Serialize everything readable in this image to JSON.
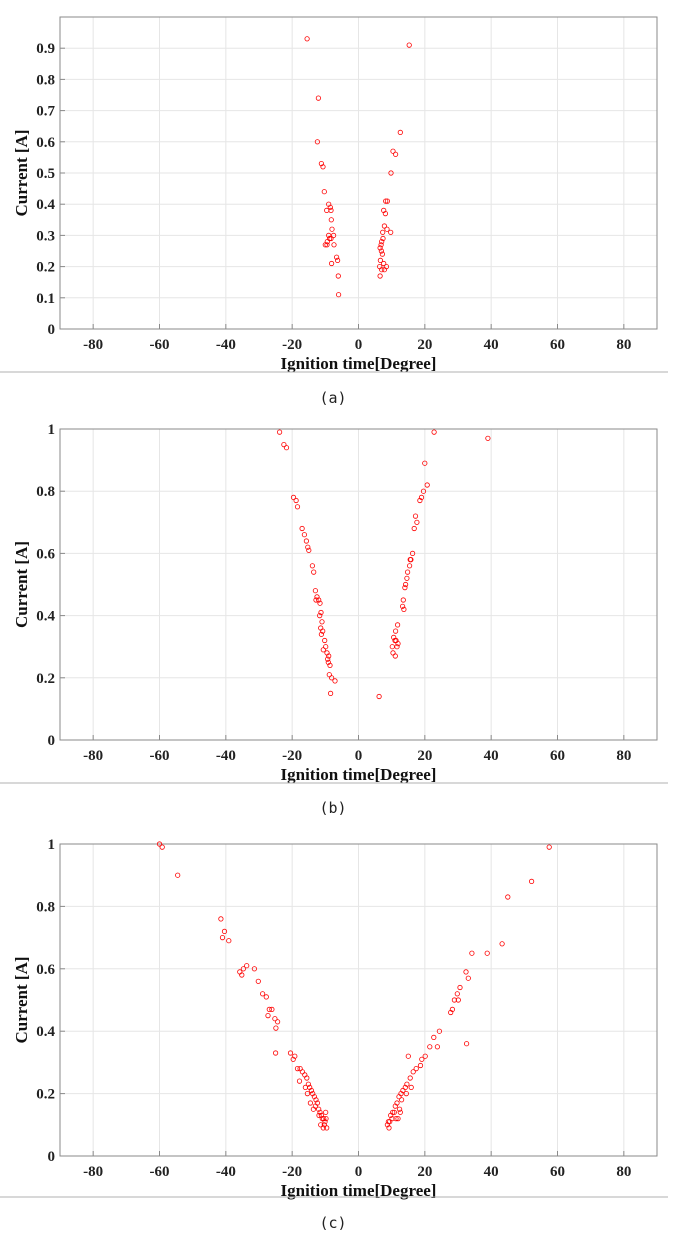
{
  "chart_data": [
    {
      "type": "scatter",
      "caption": "(a)",
      "xlabel": "Ignition time[Degree]",
      "ylabel": "Current [A]",
      "xlim": [
        -90,
        90
      ],
      "ylim": [
        0,
        1
      ],
      "xticks": [
        "-80",
        "-60",
        "-40",
        "-20",
        "0",
        "20",
        "40",
        "60",
        "80"
      ],
      "yticks": [
        "0",
        "0.1",
        "0.2",
        "0.3",
        "0.4",
        "0.5",
        "0.6",
        "0.7",
        "0.8",
        "0.9"
      ],
      "grid": true,
      "color": "#ff0000",
      "points": [
        [
          -15.5,
          0.93
        ],
        [
          15.3,
          0.91
        ],
        [
          -12.1,
          0.74
        ],
        [
          -12.4,
          0.6
        ],
        [
          12.6,
          0.63
        ],
        [
          -11.2,
          0.53
        ],
        [
          -10.7,
          0.52
        ],
        [
          10.4,
          0.57
        ],
        [
          11.2,
          0.56
        ],
        [
          9.8,
          0.5
        ],
        [
          -10.3,
          0.44
        ],
        [
          -9.0,
          0.4
        ],
        [
          -8.5,
          0.39
        ],
        [
          -8.3,
          0.38
        ],
        [
          -9.6,
          0.38
        ],
        [
          8.2,
          0.41
        ],
        [
          8.7,
          0.41
        ],
        [
          7.6,
          0.38
        ],
        [
          8.1,
          0.37
        ],
        [
          -8.2,
          0.35
        ],
        [
          -8.0,
          0.32
        ],
        [
          -9.0,
          0.3
        ],
        [
          -8.7,
          0.29
        ],
        [
          -8.3,
          0.29
        ],
        [
          -7.5,
          0.3
        ],
        [
          7.8,
          0.33
        ],
        [
          8.6,
          0.32
        ],
        [
          7.3,
          0.31
        ],
        [
          9.7,
          0.31
        ],
        [
          7.0,
          0.28
        ],
        [
          7.4,
          0.29
        ],
        [
          6.8,
          0.27
        ],
        [
          -9.4,
          0.28
        ],
        [
          -10.0,
          0.27
        ],
        [
          -9.5,
          0.27
        ],
        [
          -7.4,
          0.27
        ],
        [
          6.5,
          0.26
        ],
        [
          6.9,
          0.25
        ],
        [
          7.2,
          0.24
        ],
        [
          6.6,
          0.22
        ],
        [
          -6.6,
          0.23
        ],
        [
          -6.3,
          0.22
        ],
        [
          -8.1,
          0.21
        ],
        [
          7.6,
          0.21
        ],
        [
          8.4,
          0.2
        ],
        [
          7.0,
          0.19
        ],
        [
          7.8,
          0.19
        ],
        [
          6.4,
          0.2
        ],
        [
          6.5,
          0.17
        ],
        [
          -6.1,
          0.17
        ],
        [
          -6.0,
          0.11
        ]
      ]
    },
    {
      "type": "scatter",
      "caption": "(b)",
      "xlabel": "Ignition time[Degree]",
      "ylabel": "Current [A]",
      "xlim": [
        -90,
        90
      ],
      "ylim": [
        0,
        1
      ],
      "xticks": [
        "-80",
        "-60",
        "-40",
        "-20",
        "0",
        "20",
        "40",
        "60",
        "80"
      ],
      "yticks": [
        "0",
        "0.2",
        "0.4",
        "0.6",
        "0.8",
        "1"
      ],
      "grid": true,
      "color": "#ff0000",
      "points": [
        [
          -23.8,
          0.99
        ],
        [
          22.8,
          0.99
        ],
        [
          -22.5,
          0.95
        ],
        [
          -21.7,
          0.94
        ],
        [
          39.0,
          0.97
        ],
        [
          20.0,
          0.89
        ],
        [
          20.7,
          0.82
        ],
        [
          19.6,
          0.8
        ],
        [
          19.0,
          0.78
        ],
        [
          18.5,
          0.77
        ],
        [
          -19.6,
          0.78
        ],
        [
          -18.8,
          0.77
        ],
        [
          -18.4,
          0.75
        ],
        [
          17.2,
          0.72
        ],
        [
          17.6,
          0.7
        ],
        [
          16.8,
          0.68
        ],
        [
          -17.0,
          0.68
        ],
        [
          -16.3,
          0.66
        ],
        [
          -15.7,
          0.64
        ],
        [
          -15.3,
          0.62
        ],
        [
          -15.0,
          0.61
        ],
        [
          16.3,
          0.6
        ],
        [
          15.8,
          0.58
        ],
        [
          15.4,
          0.56
        ],
        [
          15.6,
          0.58
        ],
        [
          -13.9,
          0.56
        ],
        [
          -13.5,
          0.54
        ],
        [
          14.8,
          0.54
        ],
        [
          14.6,
          0.52
        ],
        [
          14.2,
          0.5
        ],
        [
          14.0,
          0.49
        ],
        [
          -13.0,
          0.48
        ],
        [
          -12.5,
          0.46
        ],
        [
          -12.8,
          0.45
        ],
        [
          -12.0,
          0.45
        ],
        [
          -11.6,
          0.44
        ],
        [
          13.5,
          0.45
        ],
        [
          13.3,
          0.43
        ],
        [
          13.7,
          0.42
        ],
        [
          -11.3,
          0.41
        ],
        [
          -11.7,
          0.4
        ],
        [
          -11.0,
          0.38
        ],
        [
          -11.4,
          0.36
        ],
        [
          -10.8,
          0.35
        ],
        [
          -11.2,
          0.34
        ],
        [
          11.8,
          0.37
        ],
        [
          11.2,
          0.35
        ],
        [
          10.6,
          0.33
        ],
        [
          11.0,
          0.32
        ],
        [
          11.3,
          0.32
        ],
        [
          11.9,
          0.31
        ],
        [
          10.2,
          0.3
        ],
        [
          11.6,
          0.3
        ],
        [
          -10.2,
          0.32
        ],
        [
          -9.9,
          0.3
        ],
        [
          -10.6,
          0.29
        ],
        [
          -9.5,
          0.28
        ],
        [
          -9.0,
          0.27
        ],
        [
          -9.3,
          0.26
        ],
        [
          -9.1,
          0.25
        ],
        [
          -8.6,
          0.24
        ],
        [
          10.4,
          0.28
        ],
        [
          11.1,
          0.27
        ],
        [
          -8.8,
          0.21
        ],
        [
          -8.1,
          0.2
        ],
        [
          -7.1,
          0.19
        ],
        [
          -8.4,
          0.15
        ],
        [
          6.2,
          0.14
        ]
      ]
    },
    {
      "type": "scatter",
      "caption": "(c)",
      "xlabel": "Ignition time[Degree]",
      "ylabel": "Current [A]",
      "xlim": [
        -90,
        90
      ],
      "ylim": [
        0,
        1
      ],
      "xticks": [
        "-80",
        "-60",
        "-40",
        "-20",
        "0",
        "20",
        "40",
        "60",
        "80"
      ],
      "yticks": [
        "0",
        "0.2",
        "0.4",
        "0.6",
        "0.8",
        "1"
      ],
      "grid": true,
      "color": "#ff0000",
      "points": [
        [
          -60.0,
          1.0
        ],
        [
          -59.2,
          0.99
        ],
        [
          -54.5,
          0.9
        ],
        [
          57.5,
          0.99
        ],
        [
          52.2,
          0.88
        ],
        [
          45.0,
          0.83
        ],
        [
          -41.5,
          0.76
        ],
        [
          -40.4,
          0.72
        ],
        [
          -41.0,
          0.7
        ],
        [
          -39.1,
          0.69
        ],
        [
          -35.8,
          0.59
        ],
        [
          -34.7,
          0.6
        ],
        [
          -33.7,
          0.61
        ],
        [
          -35.2,
          0.58
        ],
        [
          -31.4,
          0.6
        ],
        [
          -30.2,
          0.56
        ],
        [
          -28.9,
          0.52
        ],
        [
          -27.8,
          0.51
        ],
        [
          -26.9,
          0.47
        ],
        [
          -26.1,
          0.47
        ],
        [
          -27.3,
          0.45
        ],
        [
          -25.2,
          0.44
        ],
        [
          -24.4,
          0.43
        ],
        [
          -24.9,
          0.41
        ],
        [
          -25.0,
          0.33
        ],
        [
          43.3,
          0.68
        ],
        [
          38.8,
          0.65
        ],
        [
          34.2,
          0.65
        ],
        [
          32.4,
          0.59
        ],
        [
          33.1,
          0.57
        ],
        [
          30.6,
          0.54
        ],
        [
          29.8,
          0.52
        ],
        [
          30.1,
          0.5
        ],
        [
          28.9,
          0.5
        ],
        [
          28.3,
          0.47
        ],
        [
          27.8,
          0.46
        ],
        [
          24.4,
          0.4
        ],
        [
          22.7,
          0.38
        ],
        [
          23.8,
          0.35
        ],
        [
          21.5,
          0.35
        ],
        [
          32.6,
          0.36
        ],
        [
          20.1,
          0.32
        ],
        [
          19.1,
          0.31
        ],
        [
          18.7,
          0.29
        ],
        [
          17.4,
          0.28
        ],
        [
          16.5,
          0.27
        ],
        [
          15.6,
          0.25
        ],
        [
          15.0,
          0.32
        ],
        [
          14.6,
          0.23
        ],
        [
          14.1,
          0.22
        ],
        [
          13.4,
          0.21
        ],
        [
          12.8,
          0.2
        ],
        [
          12.2,
          0.19
        ],
        [
          13.0,
          0.18
        ],
        [
          11.6,
          0.17
        ],
        [
          11.1,
          0.16
        ],
        [
          12.4,
          0.15
        ],
        [
          10.8,
          0.14
        ],
        [
          10.3,
          0.14
        ],
        [
          9.7,
          0.13
        ],
        [
          10.1,
          0.12
        ],
        [
          9.4,
          0.11
        ],
        [
          9.0,
          0.11
        ],
        [
          8.7,
          0.1
        ],
        [
          9.2,
          0.09
        ],
        [
          15.9,
          0.22
        ],
        [
          14.4,
          0.2
        ],
        [
          11.9,
          0.12
        ],
        [
          12.6,
          0.14
        ],
        [
          11.3,
          0.12
        ],
        [
          -20.5,
          0.33
        ],
        [
          -19.7,
          0.31
        ],
        [
          -19.2,
          0.32
        ],
        [
          -18.4,
          0.28
        ],
        [
          -17.6,
          0.28
        ],
        [
          -16.9,
          0.27
        ],
        [
          -16.2,
          0.26
        ],
        [
          -17.8,
          0.24
        ],
        [
          -15.6,
          0.25
        ],
        [
          -15.1,
          0.23
        ],
        [
          -14.7,
          0.22
        ],
        [
          -14.2,
          0.21
        ],
        [
          -13.8,
          0.2
        ],
        [
          -15.4,
          0.2
        ],
        [
          -13.3,
          0.19
        ],
        [
          -12.8,
          0.18
        ],
        [
          -12.4,
          0.17
        ],
        [
          -13.0,
          0.16
        ],
        [
          -12.0,
          0.15
        ],
        [
          -11.6,
          0.14
        ],
        [
          -11.9,
          0.13
        ],
        [
          -11.2,
          0.13
        ],
        [
          -10.9,
          0.12
        ],
        [
          -10.5,
          0.12
        ],
        [
          -10.1,
          0.11
        ],
        [
          -9.8,
          0.12
        ],
        [
          -10.3,
          0.1
        ],
        [
          -9.6,
          0.09
        ],
        [
          -10.6,
          0.09
        ],
        [
          -11.4,
          0.1
        ],
        [
          -14.5,
          0.17
        ],
        [
          -13.6,
          0.15
        ],
        [
          -9.9,
          0.14
        ],
        [
          -16.0,
          0.22
        ]
      ]
    }
  ]
}
